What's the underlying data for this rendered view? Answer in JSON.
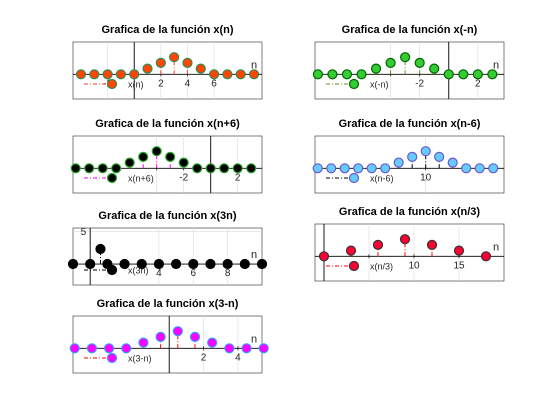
{
  "figure": {
    "background": "#ffffff",
    "axes_color": "#262626",
    "grid_color": "#dcdcdc"
  },
  "chart_data": [
    {
      "type": "stem",
      "title": "Grafica de la función x(n)",
      "xlabel": "n",
      "xlim": [
        -4.6,
        9.6
      ],
      "ylim": [
        -1.3,
        1.7
      ],
      "xticks": [
        -2,
        0,
        2,
        4,
        6
      ],
      "xtick_labels": [
        "-2",
        "",
        "2",
        "4",
        "6"
      ],
      "yticks": [],
      "grid": true,
      "legend": {
        "label": "x(n)",
        "position": "bottom-left"
      },
      "series": [
        {
          "name": "x(n)",
          "x": [
            -4,
            -3,
            -2,
            -1,
            0,
            1,
            2,
            3,
            4,
            5,
            6,
            7,
            8,
            9
          ],
          "y": [
            0,
            0,
            0,
            0,
            0,
            0.3,
            0.6,
            0.9,
            0.6,
            0.3,
            0,
            0,
            0,
            0
          ],
          "marker_fill": "#ff4500",
          "marker_edge": "#2e8b57",
          "stem_color": "#ff3b1f",
          "baseline_color": "#2e8b57"
        }
      ]
    },
    {
      "type": "stem",
      "title": "Grafica de la función x(-n)",
      "xlabel": "n",
      "xlim": [
        -9.2,
        3.8
      ],
      "ylim": [
        -1.3,
        1.7
      ],
      "xticks": [
        -4,
        -2,
        0,
        2
      ],
      "xtick_labels": [
        "",
        "-2",
        "",
        "2"
      ],
      "yticks": [],
      "grid": true,
      "legend": {
        "label": "x(-n)",
        "position": "bottom-left"
      },
      "series": [
        {
          "name": "x(-n)",
          "x": [
            -9,
            -8,
            -7,
            -6,
            -5,
            -4,
            -3,
            -2,
            -1,
            0,
            1,
            2,
            3
          ],
          "y": [
            0,
            0,
            0,
            0,
            0.3,
            0.6,
            0.9,
            0.6,
            0.3,
            0,
            0,
            0,
            0
          ],
          "marker_fill": "#33cc33",
          "marker_edge": "#006400",
          "stem_color": "#6b8e23",
          "baseline_color": "#2e8b57"
        }
      ]
    },
    {
      "type": "stem",
      "title": "Grafica de la función x(n+6)",
      "xlabel": "",
      "xlim": [
        -10.2,
        3.8
      ],
      "ylim": [
        -1.3,
        1.7
      ],
      "xticks": [
        -4,
        -2,
        0,
        2
      ],
      "xtick_labels": [
        "",
        "-2",
        "",
        "2"
      ],
      "yticks": [],
      "grid": true,
      "legend": {
        "label": "x(n+6)",
        "position": "bottom-left"
      },
      "series": [
        {
          "name": "x(n+6)",
          "x": [
            -10,
            -9,
            -8,
            -7,
            -6,
            -5,
            -4,
            -3,
            -2,
            -1,
            0,
            1,
            2,
            3
          ],
          "y": [
            0,
            0,
            0,
            0,
            0.3,
            0.6,
            0.9,
            0.6,
            0.3,
            0,
            0,
            0,
            0,
            0
          ],
          "marker_fill": "#000000",
          "marker_edge": "#22aa22",
          "stem_color": "#ff00ff",
          "baseline_color": "#2e8b57"
        }
      ]
    },
    {
      "type": "stem",
      "title": "Grafica de la función x(n-6)",
      "xlabel": "",
      "xlim": [
        1.8,
        15.8
      ],
      "ylim": [
        -1.3,
        1.7
      ],
      "xticks": [
        10
      ],
      "xtick_labels": [
        "10"
      ],
      "yticks": [],
      "grid": true,
      "legend": {
        "label": "x(n-6)",
        "position": "bottom-left"
      },
      "series": [
        {
          "name": "x(n-6)",
          "x": [
            2,
            3,
            4,
            5,
            6,
            7,
            8,
            9,
            10,
            11,
            12,
            13,
            14,
            15
          ],
          "y": [
            0,
            0,
            0,
            0,
            0,
            0,
            0.3,
            0.6,
            0.9,
            0.6,
            0.3,
            0,
            0,
            0
          ],
          "marker_fill": "#66ccff",
          "marker_edge": "#6a5acd",
          "stem_color": "#000000",
          "baseline_color": "#000000"
        }
      ]
    },
    {
      "type": "stem",
      "title": "Grafica de la función x(3n)",
      "xlabel": "n",
      "xlim": [
        -1,
        10
      ],
      "ylim": [
        -3.2,
        5.5
      ],
      "xticks": [
        4,
        6,
        8
      ],
      "xtick_labels": [
        "4",
        "6",
        "8"
      ],
      "yticks": [
        5
      ],
      "ytick_labels": [
        "5"
      ],
      "grid": true,
      "legend": {
        "label": "x(3n)",
        "position": "bottom-left"
      },
      "series": [
        {
          "name": "x(3n)",
          "x": [
            -1,
            0,
            1,
            2,
            3,
            4,
            5,
            6,
            7,
            8,
            9,
            10
          ],
          "y": [
            0,
            0,
            0,
            0,
            0,
            0,
            0,
            0,
            0,
            0,
            0,
            0
          ],
          "marker_fill": "#000000",
          "marker_edge": "#000000",
          "stem_color": "#000000",
          "baseline_color": "#000000"
        },
        {
          "name": "",
          "x": [
            0.6
          ],
          "y": [
            2.3
          ],
          "marker_fill": "#000000",
          "marker_edge": "#000000",
          "stem_color": "#000000",
          "baseline_color": "#000000"
        }
      ]
    },
    {
      "type": "stem",
      "title": "Grafica de la función x(n/3)",
      "xlabel": "n",
      "xlim": [
        -1,
        20
      ],
      "ylim": [
        -1.3,
        1.7
      ],
      "xticks": [
        5,
        10,
        15
      ],
      "xtick_labels": [
        "",
        "10",
        "15"
      ],
      "yticks": [],
      "grid": true,
      "legend": {
        "label": "x(n/3)",
        "position": "bottom-left"
      },
      "series": [
        {
          "name": "x(n/3)",
          "x": [
            0,
            3,
            6,
            9,
            12,
            15,
            18
          ],
          "y": [
            0,
            0.3,
            0.6,
            0.9,
            0.6,
            0.3,
            0
          ],
          "marker_fill": "#ff0033",
          "marker_edge": "#333333",
          "stem_color": "#ff0000",
          "baseline_color": "#000000"
        }
      ]
    },
    {
      "type": "stem",
      "title": "Grafica de la función x(3-n)",
      "xlabel": "n",
      "xlim": [
        -5.6,
        5.4
      ],
      "ylim": [
        -1.3,
        1.7
      ],
      "xticks": [
        2,
        4
      ],
      "xtick_labels": [
        "2",
        "4"
      ],
      "yticks": [],
      "grid": true,
      "legend": {
        "label": "x(3-n)",
        "position": "bottom-left"
      },
      "series": [
        {
          "name": "x(3-n)",
          "x": [
            -5.5,
            -4.5,
            -3.5,
            -2.5,
            -1.5,
            -0.5,
            0.5,
            1.5,
            2.5,
            3.5,
            4.5,
            5.5
          ],
          "y": [
            0,
            0,
            0,
            0,
            0.3,
            0.6,
            0.9,
            0.6,
            0.3,
            0,
            0,
            0
          ],
          "marker_fill": "#ff00ff",
          "marker_edge": "#3399ff",
          "stem_color": "#ff0000",
          "baseline_color": "#000000"
        }
      ]
    }
  ]
}
